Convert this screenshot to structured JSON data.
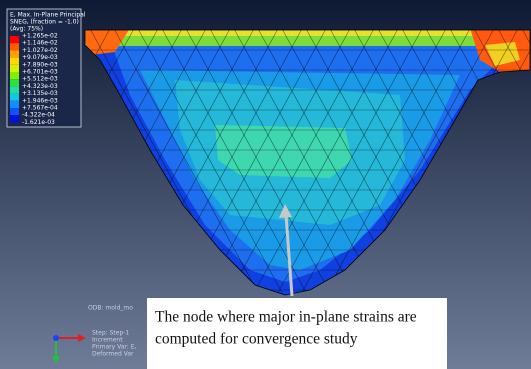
{
  "legend": {
    "title": "E, Max. In-Plane Principal",
    "subtitle": "SNEG, (fraction = -1.0)",
    "averaging": "(Avg: 75%)",
    "labels": [
      "+1.265e-02",
      "+1.146e-02",
      "+1.027e-02",
      "+9.079e-03",
      "+7.890e-03",
      "+6.701e-03",
      "+5.512e-03",
      "+4.323e-03",
      "+3.135e-03",
      "+1.946e-03",
      "+7.567e-04",
      "-4.322e-04",
      "-1.621e-03"
    ]
  },
  "info": {
    "odb": "ODB: mold_mo",
    "step": "Step: Step-1",
    "increment": "Increment",
    "primary_var": "Primary Var: E,",
    "deformed_var": "Deformed Var"
  },
  "annotation": {
    "lines": [
      "The node where major in-plane strains are",
      "computed for convergence study"
    ]
  }
}
